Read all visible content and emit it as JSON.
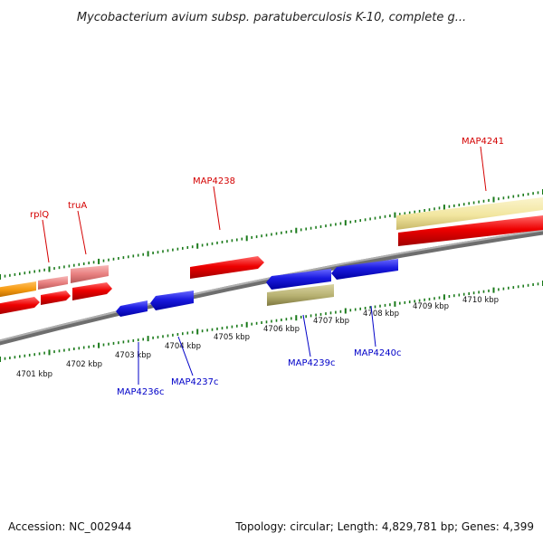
{
  "title": "Mycobacterium avium subsp. paratuberculosis K-10, complete g...",
  "footer": {
    "accession": "Accession: NC_002944",
    "summary": "Topology: circular; Length: 4,829,781 bp; Genes: 4,399"
  },
  "scale_labels": [
    "4701 kbp",
    "4702 kbp",
    "4703 kbp",
    "4704 kbp",
    "4705 kbp",
    "4706 kbp",
    "4707 kbp",
    "4708 kbp",
    "4709 kbp",
    "4710 kbp"
  ],
  "gene_labels_top": [
    "rplQ",
    "truA",
    "MAP4238",
    "MAP4241"
  ],
  "gene_labels_bottom": [
    "MAP4236c",
    "MAP4237c",
    "MAP4239c",
    "MAP4240c"
  ],
  "colors": {
    "forward_red": "#ee0000",
    "pale_red": "#e88080",
    "orange": "#f59a10",
    "pale_yellow": "#f2e6a0",
    "reverse_blue": "#1a1ae0",
    "olive": "#b6b070",
    "backbone": "#8a8a8a",
    "tick_green": "#1a7a1a",
    "label_red": "#d40000",
    "label_blue": "#0000c8"
  }
}
